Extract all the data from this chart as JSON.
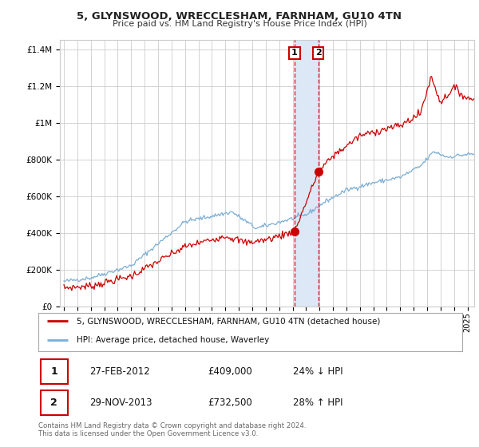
{
  "title1": "5, GLYNSWOOD, WRECCLESHAM, FARNHAM, GU10 4TN",
  "title2": "Price paid vs. HM Land Registry's House Price Index (HPI)",
  "ylabel_ticks": [
    "£0",
    "£200K",
    "£400K",
    "£600K",
    "£800K",
    "£1M",
    "£1.2M",
    "£1.4M"
  ],
  "ylabel_values": [
    0,
    200000,
    400000,
    600000,
    800000,
    1000000,
    1200000,
    1400000
  ],
  "ylim": [
    0,
    1450000
  ],
  "xlim_start": 1994.7,
  "xlim_end": 2025.5,
  "marker1_x": 2012.15,
  "marker1_y": 409000,
  "marker1_label": "1",
  "marker2_x": 2013.91,
  "marker2_y": 732500,
  "marker2_label": "2",
  "shade_x1": 2012.15,
  "shade_x2": 2013.91,
  "legend_line1": "5, GLYNSWOOD, WRECCLESHAM, FARNHAM, GU10 4TN (detached house)",
  "legend_line2": "HPI: Average price, detached house, Waverley",
  "table_row1": [
    "1",
    "27-FEB-2012",
    "£409,000",
    "24% ↓ HPI"
  ],
  "table_row2": [
    "2",
    "29-NOV-2013",
    "£732,500",
    "28% ↑ HPI"
  ],
  "footnote1": "Contains HM Land Registry data © Crown copyright and database right 2024.",
  "footnote2": "This data is licensed under the Open Government Licence v3.0.",
  "red_color": "#cc0000",
  "blue_color": "#7aaed6",
  "shade_color": "#dce8f5",
  "bg_color": "#ffffff",
  "grid_color": "#cccccc"
}
